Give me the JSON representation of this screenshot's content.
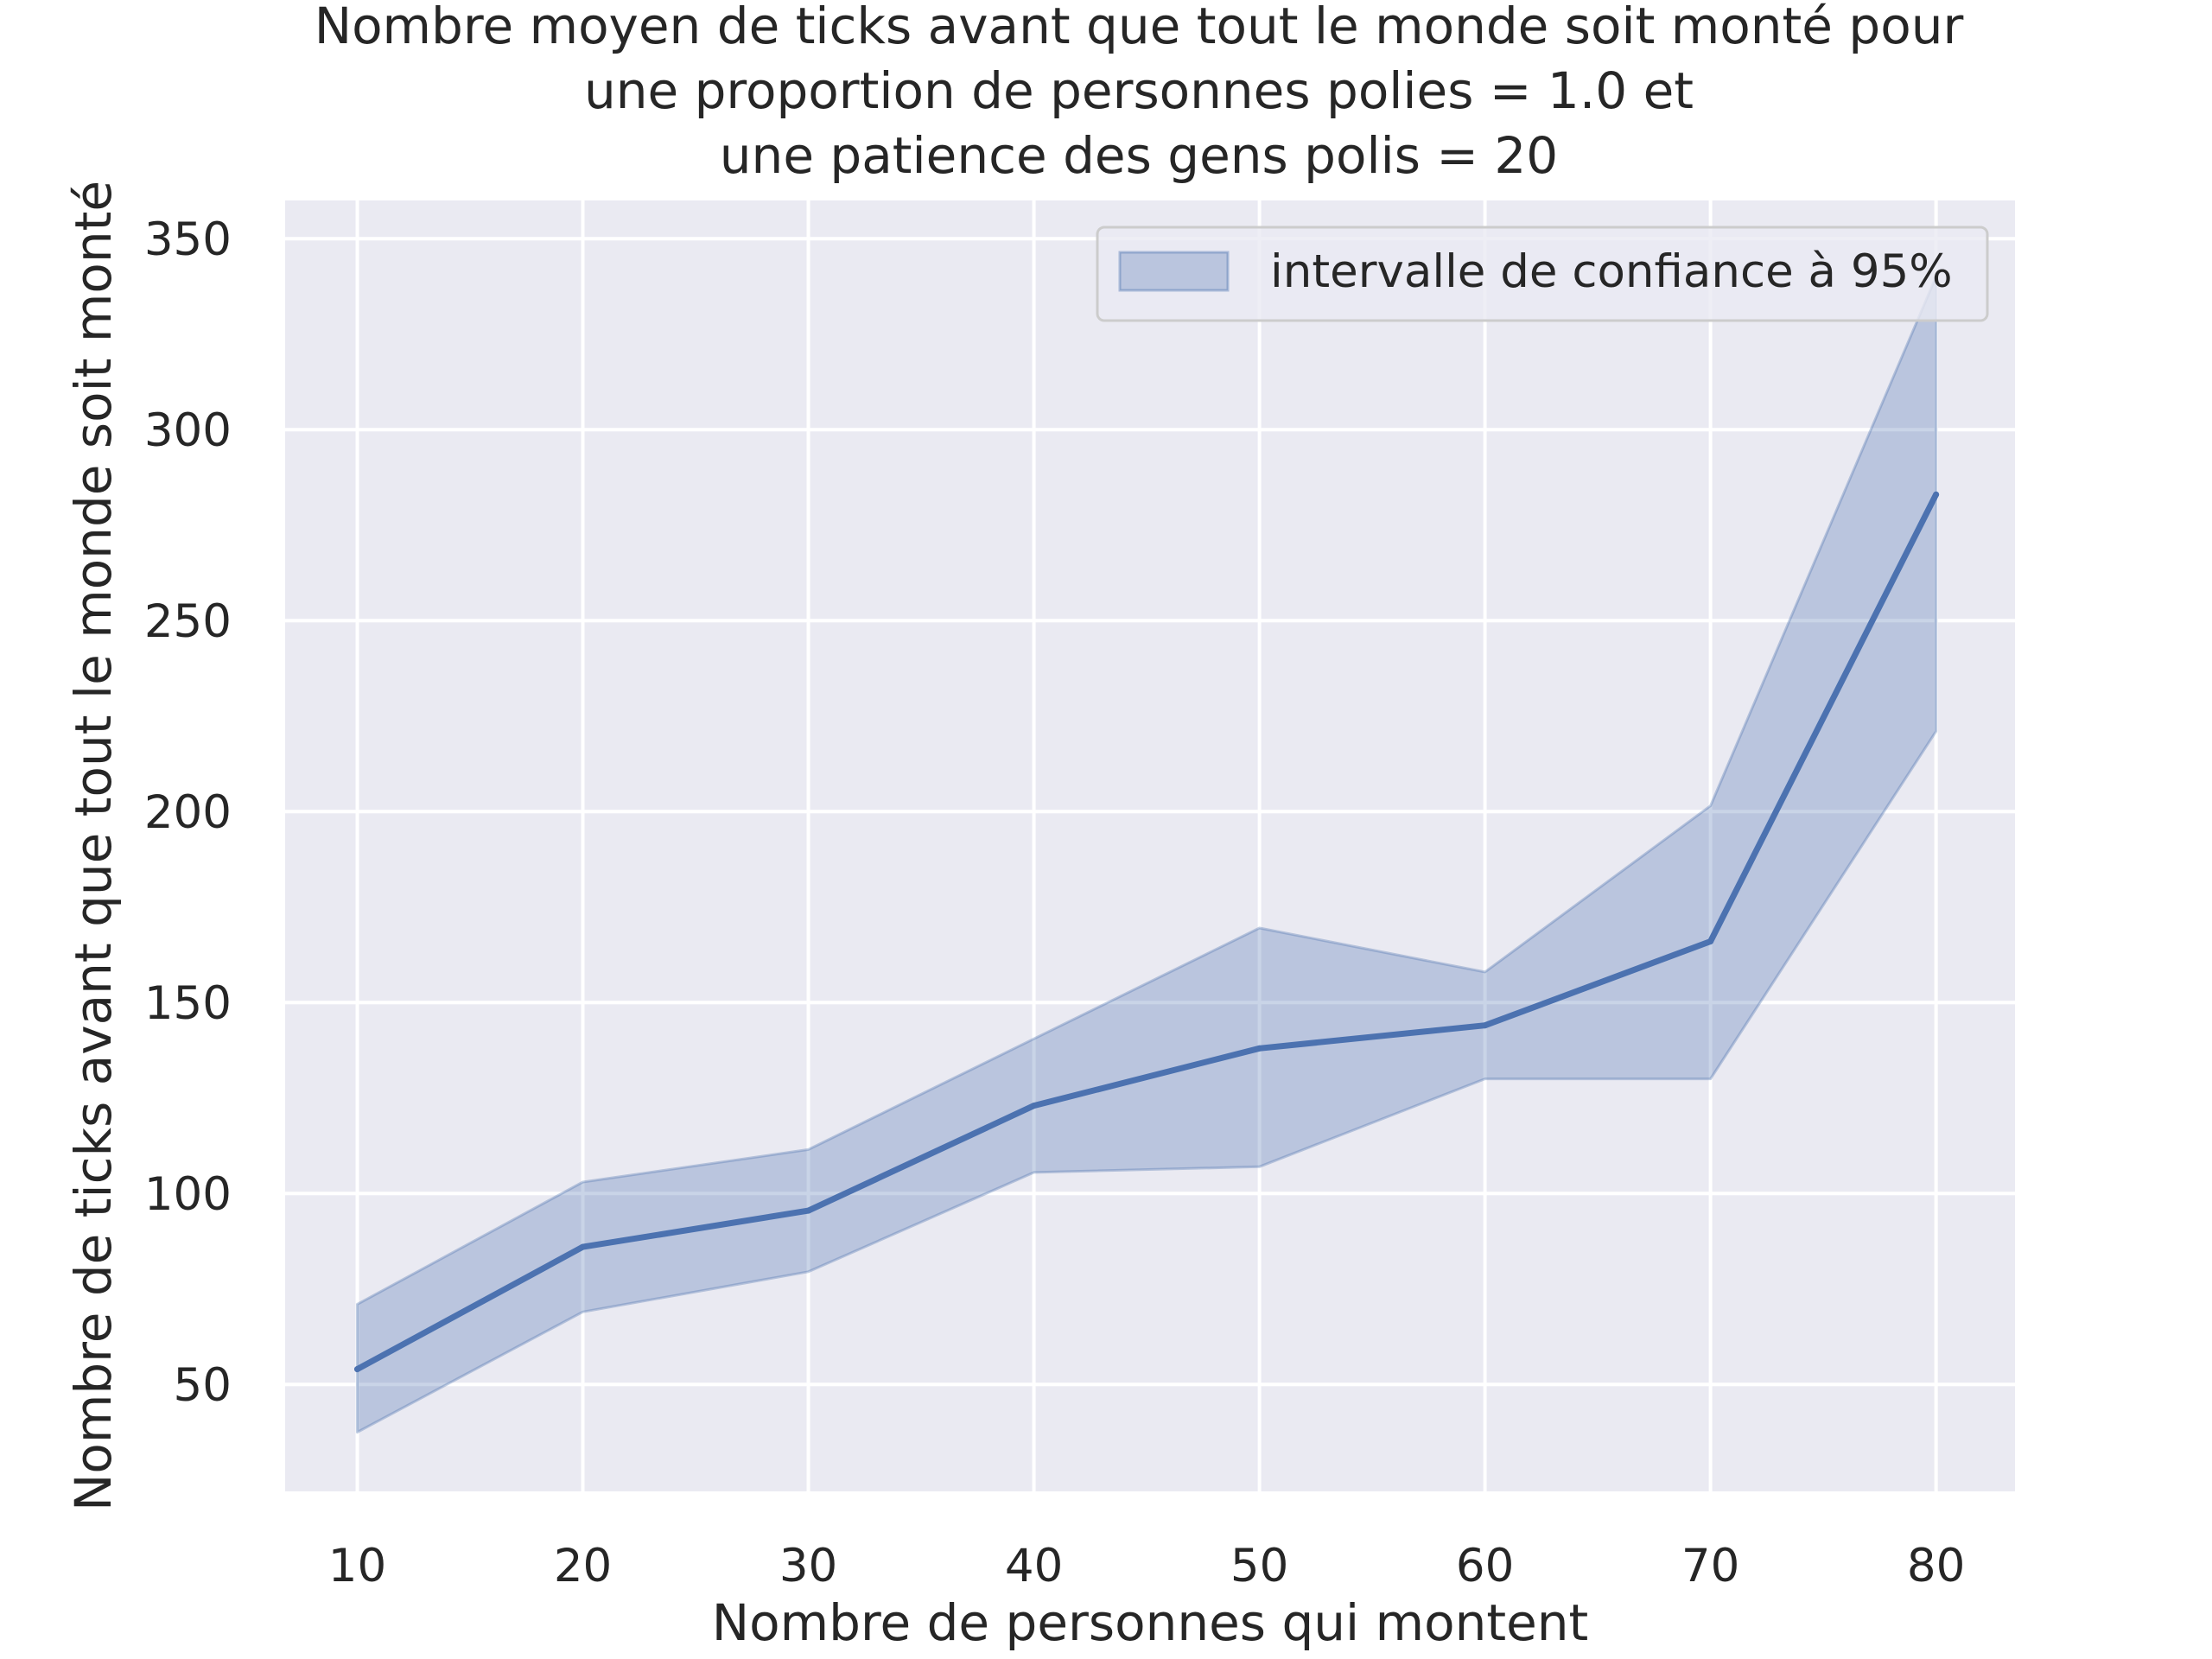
{
  "chart_data": {
    "type": "line",
    "title_lines": [
      "Nombre moyen de ticks avant que tout le monde soit monté pour",
      "une proportion de personnes polies = 1.0 et",
      "une patience des gens polis = 20"
    ],
    "xlabel": "Nombre de personnes qui montent",
    "ylabel": "Nombre de ticks avant que tout le monde soit monté",
    "x": [
      10,
      20,
      30,
      40,
      50,
      60,
      70,
      80
    ],
    "x_ticks": [
      "10",
      "20",
      "30",
      "40",
      "50",
      "60",
      "70",
      "80"
    ],
    "y_ticks": [
      "50",
      "100",
      "150",
      "200",
      "250",
      "300",
      "350"
    ],
    "xlim": [
      6.8,
      83.5
    ],
    "ylim": [
      22,
      360
    ],
    "grid": true,
    "legend_position": "top-right",
    "series": [
      {
        "values": [
          54,
          86,
          95.5,
          123,
          138,
          144,
          166,
          283
        ]
      }
    ],
    "confidence_band": {
      "name": "intervalle de confiance à 95%",
      "lower": [
        37.5,
        69,
        79.5,
        105.5,
        107,
        130,
        130,
        221
      ],
      "upper": [
        71,
        103,
        111.5,
        140.5,
        169.5,
        158,
        201.5,
        340
      ]
    },
    "colors": {
      "background": "#eaeaf2",
      "grid": "#ffffff",
      "line": "#4c72b0",
      "band": "#4c72b0"
    }
  }
}
